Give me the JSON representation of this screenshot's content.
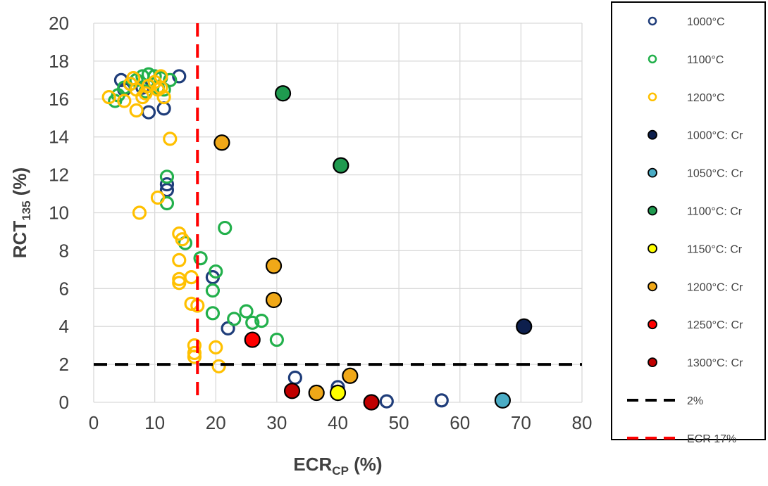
{
  "chart_data": {
    "type": "scatter",
    "xlabel": "ECR",
    "xlabel_sub": "CP",
    "xlabel_unit": " (%)",
    "ylabel": "RCT",
    "ylabel_sub": "135",
    "ylabel_unit": " (%)",
    "xlim": [
      0,
      80
    ],
    "ylim": [
      0,
      20
    ],
    "x_ticks": [
      "0",
      "10",
      "20",
      "30",
      "40",
      "50",
      "60",
      "70",
      "80"
    ],
    "y_ticks": [
      "0",
      "2",
      "4",
      "6",
      "8",
      "10",
      "12",
      "14",
      "16",
      "18",
      "20"
    ],
    "grid": true,
    "legend_position": "right",
    "series": [
      {
        "name": "1000°C",
        "marker": "hollow",
        "color": "#1f3d7a",
        "points": [
          [
            4.5,
            17
          ],
          [
            5,
            16.5
          ],
          [
            9,
            15.3
          ],
          [
            11.5,
            15.5
          ],
          [
            14,
            17.2
          ],
          [
            8,
            16.6
          ],
          [
            12,
            11.5
          ],
          [
            12,
            11.2
          ],
          [
            19.5,
            6.6
          ],
          [
            22,
            3.9
          ],
          [
            33,
            1.3
          ],
          [
            40,
            0.8
          ],
          [
            48,
            0.05
          ],
          [
            57,
            0.1
          ]
        ]
      },
      {
        "name": "1100°C",
        "marker": "hollow",
        "color": "#22b04b",
        "points": [
          [
            3.5,
            15.9
          ],
          [
            4,
            16.2
          ],
          [
            5,
            16.6
          ],
          [
            6,
            16.8
          ],
          [
            7,
            17
          ],
          [
            8,
            17.2
          ],
          [
            9,
            17.3
          ],
          [
            10,
            17.2
          ],
          [
            11,
            17.1
          ],
          [
            12.5,
            17
          ],
          [
            8.5,
            16.4
          ],
          [
            10.5,
            16.6
          ],
          [
            11.5,
            16.5
          ],
          [
            12,
            11.9
          ],
          [
            12,
            10.5
          ],
          [
            15,
            8.4
          ],
          [
            17.5,
            7.6
          ],
          [
            21.5,
            9.2
          ],
          [
            20,
            6.9
          ],
          [
            19.5,
            5.9
          ],
          [
            19.5,
            4.7
          ],
          [
            23,
            4.4
          ],
          [
            25,
            4.8
          ],
          [
            26,
            4.2
          ],
          [
            27.5,
            4.3
          ],
          [
            30,
            3.3
          ]
        ]
      },
      {
        "name": "1200°C",
        "marker": "hollow",
        "color": "#ffc000",
        "points": [
          [
            2.5,
            16.1
          ],
          [
            5,
            15.9
          ],
          [
            6,
            16.8
          ],
          [
            6.5,
            17.1
          ],
          [
            7,
            16.5
          ],
          [
            7,
            15.4
          ],
          [
            8,
            16.1
          ],
          [
            8.5,
            16.3
          ],
          [
            9,
            16.7
          ],
          [
            10,
            16.9
          ],
          [
            10.5,
            16.5
          ],
          [
            11,
            17.2
          ],
          [
            11,
            16.6
          ],
          [
            11.5,
            16.1
          ],
          [
            12.5,
            13.9
          ],
          [
            10.5,
            10.8
          ],
          [
            7.5,
            10
          ],
          [
            14,
            8.9
          ],
          [
            14.5,
            8.6
          ],
          [
            14,
            7.5
          ],
          [
            14,
            6.5
          ],
          [
            14,
            6.3
          ],
          [
            16,
            6.6
          ],
          [
            16,
            5.2
          ],
          [
            17,
            5.1
          ],
          [
            16.5,
            3
          ],
          [
            16.5,
            2.6
          ],
          [
            16.5,
            2.4
          ],
          [
            20,
            2.9
          ],
          [
            20.5,
            1.9
          ]
        ]
      },
      {
        "name": "1000°C: Cr",
        "marker": "filled",
        "color": "#0d1f4d",
        "points": [
          [
            70.5,
            4
          ]
        ]
      },
      {
        "name": "1050°C: Cr",
        "marker": "filled",
        "color": "#4aacc5",
        "points": [
          [
            67,
            0.1
          ]
        ]
      },
      {
        "name": "1100°C: Cr",
        "marker": "filled",
        "color": "#1f9a4f",
        "points": [
          [
            31,
            16.3
          ],
          [
            40.5,
            12.5
          ]
        ]
      },
      {
        "name": "1150°C: Cr",
        "marker": "filled",
        "color": "#ffff00",
        "points": [
          [
            40,
            0.5
          ]
        ]
      },
      {
        "name": "1200°C: Cr",
        "marker": "filled",
        "color": "#f0a818",
        "points": [
          [
            21,
            13.7
          ],
          [
            29.5,
            7.2
          ],
          [
            29.5,
            5.4
          ],
          [
            36.5,
            0.5
          ],
          [
            42,
            1.4
          ]
        ]
      },
      {
        "name": "1250°C: Cr",
        "marker": "filled",
        "color": "#ff0000",
        "points": [
          [
            26,
            3.3
          ]
        ]
      },
      {
        "name": "1300°C: Cr",
        "marker": "filled",
        "color": "#c00000",
        "points": [
          [
            32.5,
            0.6
          ],
          [
            45.5,
            0
          ]
        ]
      }
    ],
    "reference_lines": [
      {
        "name": "2%",
        "orientation": "horizontal",
        "value": 2,
        "color": "#000000",
        "style": "dashed"
      },
      {
        "name": "ECR 17%",
        "orientation": "vertical",
        "value": 17,
        "color": "#ff0000",
        "style": "dashed"
      }
    ]
  }
}
